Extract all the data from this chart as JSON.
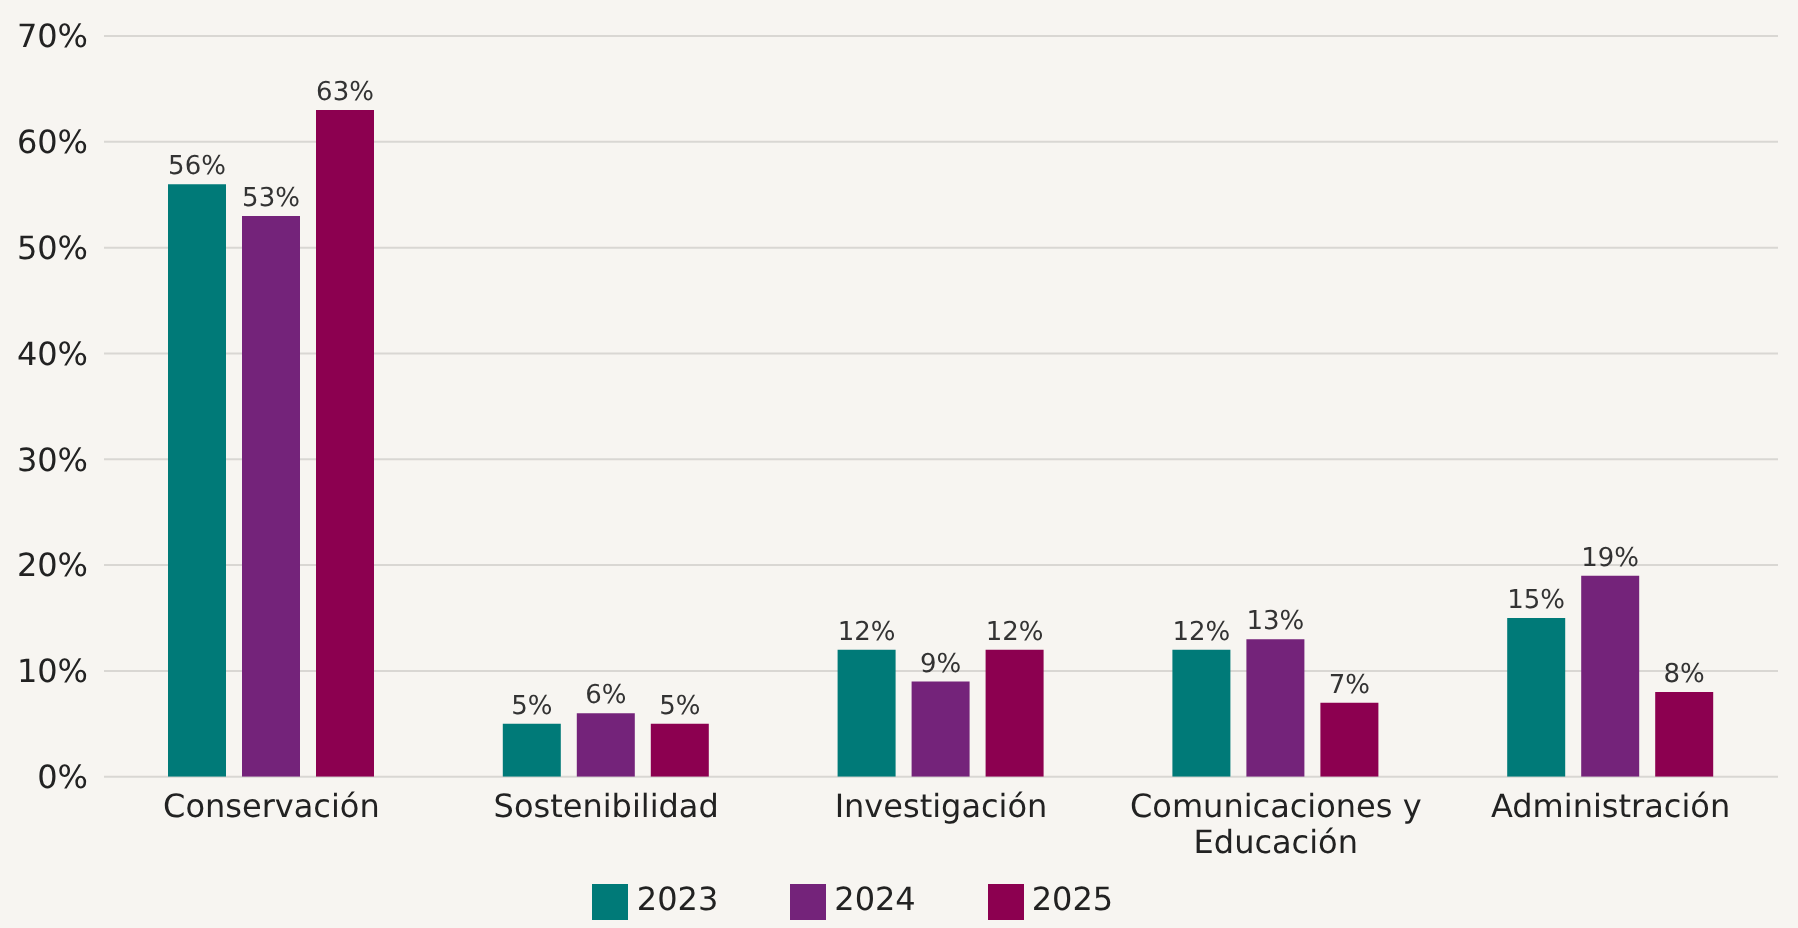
{
  "chart_data": {
    "type": "bar",
    "categories": [
      "Conservación",
      "Sostenibilidad",
      "Investigación",
      "Comunicaciones y Educación",
      "Administración"
    ],
    "series": [
      {
        "name": "2023",
        "color": "#007a78",
        "values": [
          56,
          5,
          12,
          12,
          15
        ],
        "value_labels": [
          "56%",
          "5%",
          "12%",
          "12%",
          "15%"
        ]
      },
      {
        "name": "2024",
        "color": "#74237a",
        "values": [
          53,
          6,
          9,
          13,
          19
        ],
        "value_labels": [
          "53%",
          "6%",
          "9%",
          "13%",
          "19%"
        ]
      },
      {
        "name": "2025",
        "color": "#8c0050",
        "values": [
          63,
          5,
          12,
          7,
          8
        ],
        "value_labels": [
          "63%",
          "5%",
          "12%",
          "7%",
          "8%"
        ]
      }
    ],
    "ylim": [
      0,
      70
    ],
    "yticks": [
      {
        "value": 0,
        "label": "0%"
      },
      {
        "value": 10,
        "label": "10%"
      },
      {
        "value": 20,
        "label": "20%"
      },
      {
        "value": 30,
        "label": "30%"
      },
      {
        "value": 40,
        "label": "40%"
      },
      {
        "value": 50,
        "label": "50%"
      },
      {
        "value": 60,
        "label": "60%"
      },
      {
        "value": 70,
        "label": "70%"
      }
    ],
    "grid": "y",
    "legend": "bottom"
  }
}
